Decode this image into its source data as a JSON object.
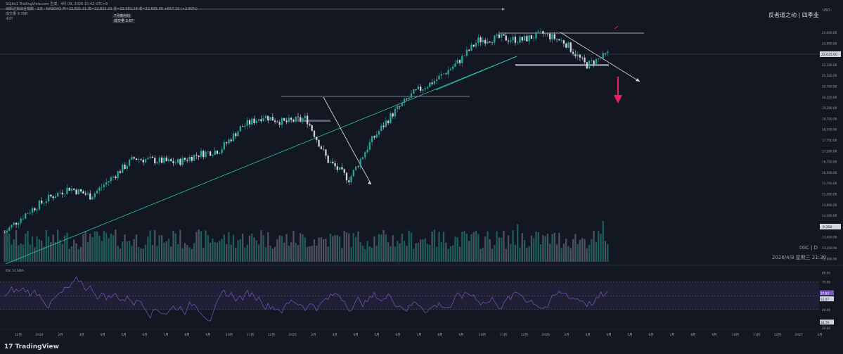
{
  "header": {
    "line1": "SGJbu1 TradingView.com 生成，4月 09, 2026 15:42 UTC+8",
    "line2": "纳斯达克综合指数 · 1天 · NASDAQ  开=22,821.21  高=22,821.21  低=22,581.28  收=22,635.00  +657.15 (+2.80%)",
    "line3": "成交量  9.35B",
    "line4": "水印",
    "tag1": "7月微利线",
    "tag2": "成交量 3.6T"
  },
  "watermark": {
    "brand": "反者道之动 | 四季韭",
    "symbol": "IXIC | D",
    "datetime": "2026/4/8 星期三 21:30"
  },
  "price_axis": {
    "currency": "USD",
    "ticks": [
      "24,000.00",
      "23,900.00",
      "23,100.00",
      "22,100.00",
      "21,500.00",
      "20,700.00",
      "20,200.00",
      "19,200.00",
      "18,700.00",
      "18,100.00",
      "17,700.00",
      "17,200.00",
      "16,700.00",
      "16,500.00",
      "15,700.00",
      "15,300.00",
      "14,900.00",
      "14,300.00",
      "13,750.00",
      "13,450.00",
      "13,150.00",
      "12,800.00"
    ],
    "last_price": "22,635.00",
    "volume_label": "9.35B"
  },
  "rsi": {
    "label": "RSI 14 SMA",
    "ticks": [
      "80.00",
      "70.00",
      "40.00",
      "20.00"
    ],
    "last_value": "57.83",
    "ma_value": "52.07",
    "low_label": "26.79"
  },
  "time_axis": [
    "12月",
    "2024",
    "2月",
    "3月",
    "4月",
    "5月",
    "6月",
    "7月",
    "8月",
    "9月",
    "10月",
    "11月",
    "12月",
    "2025",
    "2月",
    "3月",
    "4月",
    "5月",
    "6月",
    "7月",
    "8月",
    "9月",
    "10月",
    "11月",
    "12月",
    "2026",
    "2月",
    "3月",
    "4月",
    "5月",
    "6月",
    "7月",
    "8月",
    "9月",
    "10月",
    "11月",
    "12月",
    "2027",
    "2月"
  ],
  "footer": {
    "brand": "TradingView"
  },
  "colors": {
    "up": "#26a69a",
    "down": "#d1d4dc",
    "trend": "#2ec4a5",
    "rsi": "#7e57c2",
    "arrow": "#e91e63"
  },
  "chart_data": {
    "type": "line",
    "title": "纳斯达克综合指数 · 1天 · NASDAQ",
    "ylabel": "USD",
    "x": [
      "2023-12",
      "2024-01",
      "2024-02",
      "2024-03",
      "2024-04",
      "2024-05",
      "2024-06",
      "2024-07",
      "2024-08",
      "2024-09",
      "2024-10",
      "2024-11",
      "2024-12",
      "2025-01",
      "2025-02",
      "2025-03",
      "2025-04",
      "2025-05",
      "2025-06",
      "2025-07",
      "2025-08",
      "2025-09",
      "2025-10",
      "2025-11",
      "2025-12",
      "2026-01",
      "2026-02",
      "2026-03",
      "2026-04"
    ],
    "series": [
      {
        "values": [
          14200,
          15100,
          15800,
          16300,
          15900,
          16800,
          17700,
          17600,
          17500,
          17900,
          18100,
          19200,
          19700,
          19400,
          19600,
          17600,
          16700,
          18500,
          19800,
          20800,
          21400,
          22200,
          23300,
          23400,
          23300,
          23600,
          23200,
          22100,
          22635
        ]
      }
    ],
    "ylim": [
      12800,
      24200
    ]
  }
}
